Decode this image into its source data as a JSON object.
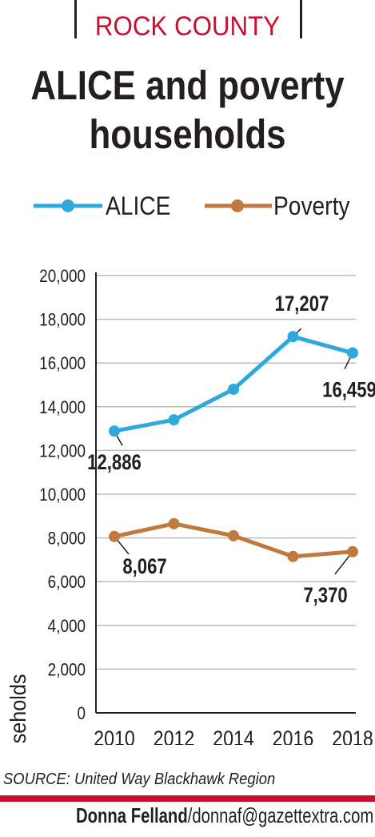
{
  "header": {
    "kicker": "ROCK COUNTY",
    "title_line1": "ALICE and poverty",
    "title_line2": "households"
  },
  "colors": {
    "alice": "#2fa8dc",
    "poverty": "#c07a3e",
    "accent_red": "#c8102e",
    "grid": "#bcbcbc",
    "text": "#231f20"
  },
  "chart_data": {
    "type": "line",
    "x": [
      2010,
      2012,
      2014,
      2016,
      2018
    ],
    "ylabel": "Households",
    "xlabel": "",
    "ylim": [
      0,
      20000
    ],
    "yticks": [
      "0",
      "2,000",
      "4,000",
      "6,000",
      "8,000",
      "10,000",
      "12,000",
      "14,000",
      "16,000",
      "18,000",
      "20,000"
    ],
    "grid": "horizontal",
    "legend": "top",
    "series": [
      {
        "name": "ALICE",
        "values": [
          12886,
          13400,
          14800,
          17207,
          16459
        ],
        "labels": {
          "0": "12,886",
          "3": "17,207",
          "4": "16,459"
        }
      },
      {
        "name": "Poverty",
        "values": [
          8067,
          8650,
          8100,
          7150,
          7370
        ],
        "labels": {
          "0": "8,067",
          "4": "7,370"
        }
      }
    ]
  },
  "footer": {
    "source": "SOURCE: United Way Blackhawk Region",
    "credit_name": "Donna Felland",
    "credit_email": "/donnaf@gazettextra.com"
  }
}
